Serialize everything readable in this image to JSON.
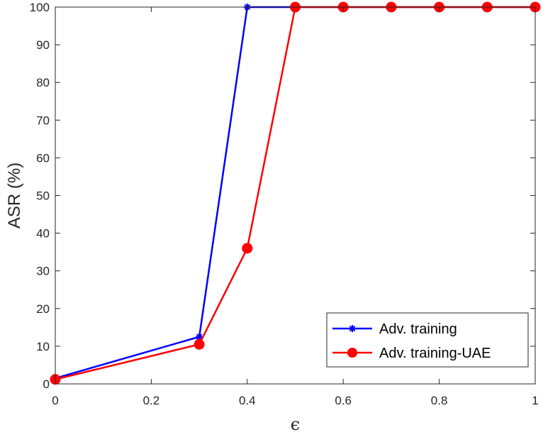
{
  "chart_data": {
    "type": "line",
    "title": "",
    "xlabel": "ϵ",
    "ylabel": "ASR (%)",
    "xlim": [
      0,
      1
    ],
    "ylim": [
      0,
      100
    ],
    "xticks": [
      0,
      0.2,
      0.4,
      0.6,
      0.8,
      1
    ],
    "xtick_labels": [
      "0",
      "0.2",
      "0.4",
      "0.6",
      "0.8",
      "1"
    ],
    "yticks": [
      0,
      10,
      20,
      30,
      40,
      50,
      60,
      70,
      80,
      90,
      100
    ],
    "ytick_labels": [
      "0",
      "10",
      "20",
      "30",
      "40",
      "50",
      "60",
      "70",
      "80",
      "90",
      "100"
    ],
    "grid": false,
    "legend_position": "bottom-right",
    "series": [
      {
        "name": "Adv. training",
        "color": "#0000ff",
        "marker": "asterisk",
        "x": [
          0,
          0.3,
          0.4,
          0.5,
          0.6,
          0.7,
          0.8,
          0.9,
          1.0
        ],
        "y": [
          1.5,
          12.5,
          100,
          100,
          100,
          100,
          100,
          100,
          100
        ]
      },
      {
        "name": "Adv. training-UAE",
        "color": "#ff0000",
        "marker": "circle",
        "x": [
          0,
          0.3,
          0.4,
          0.5,
          0.6,
          0.7,
          0.8,
          0.9,
          1.0
        ],
        "y": [
          1.2,
          10.5,
          36,
          100,
          100,
          100,
          100,
          100,
          100
        ]
      }
    ]
  }
}
